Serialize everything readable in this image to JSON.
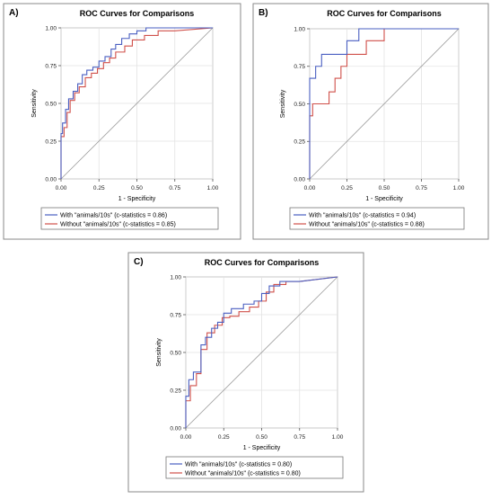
{
  "chart_data": [
    {
      "panel_label": "A)",
      "type": "line",
      "title": "ROC Curves for Comparisons",
      "xlabel": "1 - Specificity",
      "ylabel": "Sensitivity",
      "xlim": [
        0,
        1
      ],
      "ylim": [
        0,
        1
      ],
      "xticks": [
        "0.00",
        "0.25",
        "0.50",
        "0.75",
        "1.00"
      ],
      "yticks": [
        "0.00",
        "0.25",
        "0.50",
        "0.75",
        "1.00"
      ],
      "grid": true,
      "legend_position": "bottom",
      "reference_line": "diagonal",
      "series": [
        {
          "name": "With \"animals/10s\" (c-statistics = 0.86)",
          "color": "#4a5fc1",
          "x": [
            0,
            0,
            0.01,
            0.01,
            0.03,
            0.03,
            0.05,
            0.05,
            0.08,
            0.08,
            0.11,
            0.11,
            0.14,
            0.14,
            0.17,
            0.17,
            0.21,
            0.21,
            0.25,
            0.25,
            0.29,
            0.29,
            0.33,
            0.33,
            0.36,
            0.36,
            0.4,
            0.4,
            0.45,
            0.45,
            0.5,
            0.5,
            0.56,
            0.56,
            0.63,
            1.0
          ],
          "y": [
            0,
            0.3,
            0.3,
            0.37,
            0.37,
            0.46,
            0.46,
            0.53,
            0.53,
            0.58,
            0.58,
            0.63,
            0.63,
            0.69,
            0.69,
            0.72,
            0.72,
            0.74,
            0.74,
            0.78,
            0.78,
            0.81,
            0.81,
            0.86,
            0.86,
            0.89,
            0.89,
            0.93,
            0.93,
            0.96,
            0.96,
            0.98,
            0.98,
            1.0,
            1.0,
            1.0
          ]
        },
        {
          "name": "Without \"animals/10s\" (c-statistics = 0.85)",
          "color": "#d0504a",
          "x": [
            0,
            0,
            0.02,
            0.02,
            0.04,
            0.04,
            0.06,
            0.06,
            0.09,
            0.09,
            0.12,
            0.12,
            0.16,
            0.16,
            0.2,
            0.2,
            0.24,
            0.24,
            0.28,
            0.28,
            0.32,
            0.32,
            0.36,
            0.36,
            0.42,
            0.42,
            0.47,
            0.47,
            0.55,
            0.55,
            0.64,
            0.64,
            0.75,
            1.0
          ],
          "y": [
            0,
            0.28,
            0.28,
            0.34,
            0.34,
            0.44,
            0.44,
            0.52,
            0.52,
            0.57,
            0.57,
            0.61,
            0.61,
            0.67,
            0.67,
            0.7,
            0.7,
            0.73,
            0.73,
            0.77,
            0.77,
            0.8,
            0.8,
            0.84,
            0.84,
            0.88,
            0.88,
            0.92,
            0.92,
            0.95,
            0.95,
            0.98,
            0.98,
            1.0
          ]
        }
      ]
    },
    {
      "panel_label": "B)",
      "type": "line",
      "title": "ROC Curves for Comparisons",
      "xlabel": "1 - Specificity",
      "ylabel": "Sensitivity",
      "xlim": [
        0,
        1
      ],
      "ylim": [
        0,
        1
      ],
      "xticks": [
        "0.00",
        "0.25",
        "0.50",
        "0.75",
        "1.00"
      ],
      "yticks": [
        "0.00",
        "0.25",
        "0.50",
        "0.75",
        "1.00"
      ],
      "grid": true,
      "legend_position": "bottom",
      "reference_line": "diagonal",
      "series": [
        {
          "name": "With \"animals/10s\" (c-statistics = 0.94)",
          "color": "#4a5fc1",
          "x": [
            0,
            0,
            0.04,
            0.04,
            0.08,
            0.08,
            0.17,
            0.17,
            0.25,
            0.25,
            0.33,
            0.33,
            0.5,
            1.0
          ],
          "y": [
            0,
            0.67,
            0.67,
            0.75,
            0.75,
            0.83,
            0.83,
            0.83,
            0.83,
            0.92,
            0.92,
            1.0,
            1.0,
            1.0
          ]
        },
        {
          "name": "Without \"animals/10s\" (c-statistics = 0.88)",
          "color": "#d0504a",
          "x": [
            0,
            0,
            0.02,
            0.02,
            0.04,
            0.04,
            0.13,
            0.13,
            0.17,
            0.17,
            0.21,
            0.21,
            0.25,
            0.25,
            0.29,
            0.29,
            0.38,
            0.38,
            0.5,
            0.5,
            1.0
          ],
          "y": [
            0,
            0.42,
            0.42,
            0.5,
            0.5,
            0.5,
            0.5,
            0.58,
            0.58,
            0.67,
            0.67,
            0.75,
            0.75,
            0.83,
            0.83,
            0.83,
            0.83,
            0.92,
            0.92,
            1.0,
            1.0
          ]
        }
      ]
    },
    {
      "panel_label": "C)",
      "type": "line",
      "title": "ROC Curves for Comparisons",
      "xlabel": "1 - Specificity",
      "ylabel": "Sensitivity",
      "xlim": [
        0,
        1
      ],
      "ylim": [
        0,
        1
      ],
      "xticks": [
        "0.00",
        "0.25",
        "0.50",
        "0.75",
        "1.00"
      ],
      "yticks": [
        "0.00",
        "0.25",
        "0.50",
        "0.75",
        "1.00"
      ],
      "grid": true,
      "legend_position": "bottom",
      "reference_line": "diagonal",
      "series": [
        {
          "name": "With \"animals/10s\" (c-statistics = 0.80)",
          "color": "#4a5fc1",
          "x": [
            0,
            0,
            0.02,
            0.02,
            0.05,
            0.05,
            0.1,
            0.1,
            0.13,
            0.13,
            0.17,
            0.17,
            0.21,
            0.21,
            0.25,
            0.25,
            0.3,
            0.3,
            0.38,
            0.38,
            0.45,
            0.45,
            0.5,
            0.5,
            0.55,
            0.55,
            0.62,
            0.62,
            0.75,
            1.0
          ],
          "y": [
            0,
            0.21,
            0.21,
            0.32,
            0.32,
            0.37,
            0.37,
            0.55,
            0.55,
            0.6,
            0.6,
            0.66,
            0.66,
            0.7,
            0.7,
            0.76,
            0.76,
            0.79,
            0.79,
            0.82,
            0.82,
            0.84,
            0.84,
            0.89,
            0.89,
            0.94,
            0.94,
            0.97,
            0.97,
            1.0
          ]
        },
        {
          "name": "Without \"animals/10s\" (c-statistics = 0.80)",
          "color": "#d0504a",
          "x": [
            0,
            0,
            0.03,
            0.03,
            0.07,
            0.07,
            0.1,
            0.1,
            0.14,
            0.14,
            0.19,
            0.19,
            0.24,
            0.24,
            0.29,
            0.29,
            0.35,
            0.35,
            0.42,
            0.42,
            0.48,
            0.48,
            0.53,
            0.53,
            0.58,
            0.58,
            0.66,
            0.66,
            0.75,
            1.0
          ],
          "y": [
            0,
            0.18,
            0.18,
            0.28,
            0.28,
            0.36,
            0.36,
            0.52,
            0.52,
            0.63,
            0.63,
            0.68,
            0.68,
            0.73,
            0.73,
            0.74,
            0.74,
            0.77,
            0.77,
            0.8,
            0.8,
            0.84,
            0.84,
            0.9,
            0.9,
            0.95,
            0.95,
            0.97,
            0.97,
            1.0
          ]
        }
      ]
    }
  ]
}
